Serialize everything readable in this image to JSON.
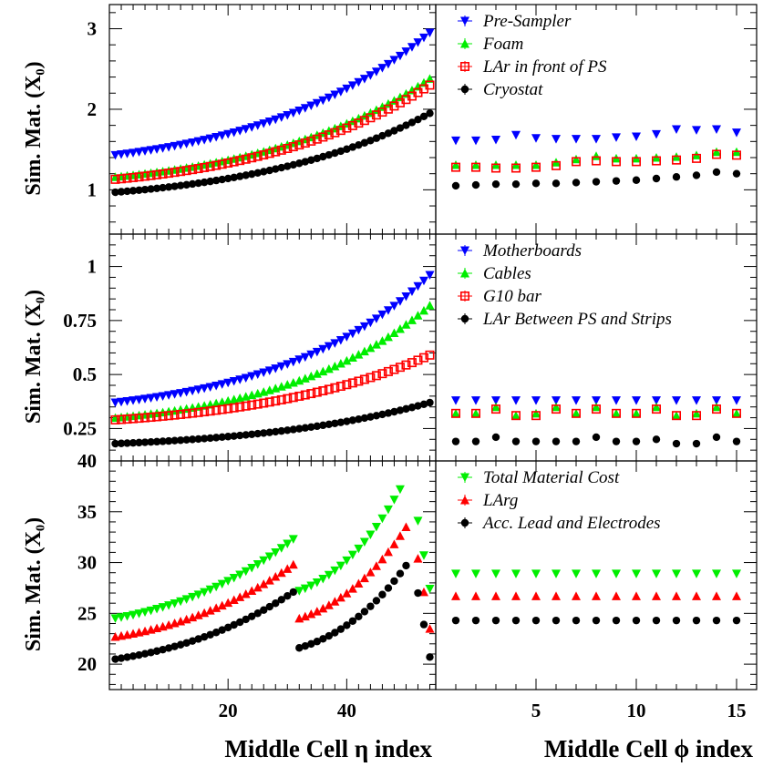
{
  "colors": {
    "blue": "#0000ff",
    "green": "#00ee00",
    "red": "#ff0000",
    "black": "#000000"
  },
  "chart_data": [
    {
      "id": "top",
      "type": "scatter",
      "ylabel": "Sim. Mat. (X₀)",
      "ylim": [
        0.45,
        3.3
      ],
      "y_ticks": [
        "1",
        "2",
        "3"
      ],
      "y_tick_values": [
        1,
        2,
        3
      ],
      "eta": {
        "x_ticks": [],
        "xlim": [
          0,
          55
        ],
        "series": [
          {
            "name": "Pre-Sampler",
            "marker": "tri_down",
            "color": "#0000ff",
            "from": 1,
            "to": 54,
            "start": 1.43,
            "end": 2.95
          },
          {
            "name": "Foam",
            "marker": "tri_up",
            "color": "#00ee00",
            "from": 1,
            "to": 54,
            "start": 1.16,
            "end": 2.38
          },
          {
            "name": "LAr in front of PS",
            "marker": "square",
            "color": "#ff0000",
            "from": 1,
            "to": 54,
            "start": 1.13,
            "end": 2.3
          },
          {
            "name": "Cryostat",
            "marker": "circle",
            "color": "#000000",
            "from": 1,
            "to": 54,
            "start": 0.97,
            "end": 1.95
          }
        ]
      },
      "phi": {
        "x_ticks": [],
        "xlim": [
          0,
          16
        ],
        "x": [
          1,
          2,
          3,
          4,
          5,
          6,
          7,
          8,
          9,
          10,
          11,
          12,
          13,
          14,
          15
        ],
        "series": [
          {
            "name": "Pre-Sampler",
            "marker": "tri_down",
            "color": "#0000ff",
            "values": [
              1.61,
              1.61,
              1.62,
              1.68,
              1.64,
              1.63,
              1.63,
              1.63,
              1.65,
              1.66,
              1.69,
              1.75,
              1.74,
              1.75,
              1.71
            ]
          },
          {
            "name": "Foam",
            "marker": "tri_up",
            "color": "#00ee00",
            "values": [
              1.31,
              1.31,
              1.31,
              1.31,
              1.31,
              1.34,
              1.38,
              1.42,
              1.39,
              1.39,
              1.4,
              1.41,
              1.43,
              1.47,
              1.47
            ]
          },
          {
            "name": "LAr in front of PS",
            "marker": "square",
            "color": "#ff0000",
            "values": [
              1.28,
              1.28,
              1.27,
              1.27,
              1.28,
              1.3,
              1.35,
              1.36,
              1.35,
              1.35,
              1.36,
              1.37,
              1.39,
              1.44,
              1.43
            ]
          },
          {
            "name": "Cryostat",
            "marker": "circle",
            "color": "#000000",
            "values": [
              1.05,
              1.06,
              1.07,
              1.07,
              1.08,
              1.08,
              1.09,
              1.1,
              1.11,
              1.12,
              1.14,
              1.16,
              1.18,
              1.22,
              1.2
            ]
          }
        ]
      },
      "legend": [
        "Pre-Sampler",
        "Foam",
        "LAr in front of PS",
        "Cryostat"
      ]
    },
    {
      "id": "middle",
      "type": "scatter",
      "ylabel": "Sim. Mat. (X₀)",
      "ylim": [
        0.1,
        1.15
      ],
      "y_ticks": [
        "0.25",
        "0.5",
        "0.75",
        "1"
      ],
      "y_tick_values": [
        0.25,
        0.5,
        0.75,
        1.0
      ],
      "eta": {
        "x_ticks": [],
        "xlim": [
          0,
          55
        ],
        "series": [
          {
            "name": "Motherboards",
            "marker": "tri_down",
            "color": "#0000ff",
            "from": 1,
            "to": 54,
            "start": 0.37,
            "end": 0.96
          },
          {
            "name": "Cables",
            "marker": "tri_up",
            "color": "#00ee00",
            "from": 1,
            "to": 54,
            "start": 0.3,
            "end": 0.82
          },
          {
            "name": "G10 bar",
            "marker": "square",
            "color": "#ff0000",
            "from": 1,
            "to": 54,
            "start": 0.29,
            "end": 0.59
          },
          {
            "name": "LAr Between PS and Strips",
            "marker": "circle",
            "color": "#000000",
            "from": 1,
            "to": 54,
            "start": 0.18,
            "end": 0.37
          }
        ]
      },
      "phi": {
        "x_ticks": [],
        "xlim": [
          0,
          16
        ],
        "x": [
          1,
          2,
          3,
          4,
          5,
          6,
          7,
          8,
          9,
          10,
          11,
          12,
          13,
          14,
          15
        ],
        "series": [
          {
            "name": "Motherboards",
            "marker": "tri_down",
            "color": "#0000ff",
            "values": [
              0.38,
              0.38,
              0.38,
              0.38,
              0.38,
              0.38,
              0.38,
              0.38,
              0.38,
              0.38,
              0.38,
              0.38,
              0.38,
              0.38,
              0.38
            ]
          },
          {
            "name": "Cables",
            "marker": "tri_up",
            "color": "#00ee00",
            "values": [
              0.32,
              0.32,
              0.35,
              0.31,
              0.32,
              0.35,
              0.32,
              0.35,
              0.32,
              0.32,
              0.35,
              0.31,
              0.32,
              0.35,
              0.32
            ]
          },
          {
            "name": "G10 bar",
            "marker": "square",
            "color": "#ff0000",
            "values": [
              0.32,
              0.32,
              0.34,
              0.31,
              0.31,
              0.34,
              0.32,
              0.34,
              0.32,
              0.32,
              0.34,
              0.31,
              0.31,
              0.34,
              0.32
            ]
          },
          {
            "name": "LAr Between PS and Strips",
            "marker": "circle",
            "color": "#000000",
            "values": [
              0.19,
              0.19,
              0.21,
              0.19,
              0.19,
              0.19,
              0.19,
              0.21,
              0.19,
              0.19,
              0.2,
              0.18,
              0.18,
              0.21,
              0.19
            ]
          }
        ]
      },
      "legend": [
        "Motherboards",
        "Cables",
        "G10 bar",
        "LAr Between PS and Strips"
      ]
    },
    {
      "id": "bottom",
      "type": "scatter",
      "ylabel": "Sim. Mat. (X₀)",
      "ylim": [
        17.5,
        40
      ],
      "y_ticks": [
        "20",
        "25",
        "30",
        "35",
        "40"
      ],
      "y_tick_values": [
        20,
        25,
        30,
        35,
        40
      ],
      "eta": {
        "xlabel": "Middle Cell η index",
        "x_ticks": [
          "20",
          "40"
        ],
        "x_tick_values": [
          20,
          40
        ],
        "xlim": [
          0,
          55
        ],
        "series": [
          {
            "name": "Total Material Cost",
            "marker": "tri_down",
            "color": "#00ee00",
            "segments": [
              {
                "from": 1,
                "to": 31,
                "start": 24.5,
                "end": 32.3
              },
              {
                "from": 32,
                "to": 49,
                "start": 27.2,
                "end": 37.2
              }
            ],
            "extra": [
              [
                52,
                34.1
              ],
              [
                53,
                30.7
              ],
              [
                54,
                27.4
              ]
            ]
          },
          {
            "name": "LArg",
            "marker": "tri_up",
            "color": "#ff0000",
            "segments": [
              {
                "from": 1,
                "to": 31,
                "start": 22.7,
                "end": 29.8
              },
              {
                "from": 32,
                "to": 50,
                "start": 24.5,
                "end": 33.5
              }
            ],
            "extra": [
              [
                52,
                30.4
              ],
              [
                53,
                27.1
              ],
              [
                54,
                23.5
              ]
            ]
          },
          {
            "name": "Acc. Lead and Electrodes",
            "marker": "circle",
            "color": "#000000",
            "segments": [
              {
                "from": 1,
                "to": 31,
                "start": 20.5,
                "end": 27.1
              },
              {
                "from": 32,
                "to": 50,
                "start": 21.6,
                "end": 29.7
              }
            ],
            "extra": [
              [
                52,
                27.0
              ],
              [
                53,
                23.9
              ],
              [
                54,
                20.7
              ]
            ]
          }
        ]
      },
      "phi": {
        "xlabel": "Middle Cell ϕ index",
        "x_ticks": [
          "5",
          "10",
          "15"
        ],
        "x_tick_values": [
          5,
          10,
          15
        ],
        "xlim": [
          0,
          16
        ],
        "x": [
          1,
          2,
          3,
          4,
          5,
          6,
          7,
          8,
          9,
          10,
          11,
          12,
          13,
          14,
          15
        ],
        "series": [
          {
            "name": "Total Material Cost",
            "marker": "tri_down",
            "color": "#00ee00",
            "values": [
              28.9,
              28.9,
              28.9,
              28.9,
              28.9,
              28.9,
              28.9,
              28.9,
              28.9,
              28.9,
              28.9,
              28.9,
              28.9,
              28.9,
              28.9
            ]
          },
          {
            "name": "LArg",
            "marker": "tri_up",
            "color": "#ff0000",
            "values": [
              26.7,
              26.7,
              26.7,
              26.7,
              26.7,
              26.7,
              26.7,
              26.7,
              26.7,
              26.7,
              26.7,
              26.7,
              26.7,
              26.7,
              26.7
            ]
          },
          {
            "name": "Acc. Lead and Electrodes",
            "marker": "circle",
            "color": "#000000",
            "values": [
              24.3,
              24.3,
              24.3,
              24.3,
              24.3,
              24.3,
              24.3,
              24.3,
              24.3,
              24.3,
              24.3,
              24.3,
              24.3,
              24.3,
              24.3
            ]
          }
        ]
      },
      "legend": [
        "Total Material Cost",
        "LArg",
        "Acc. Lead and Electrodes"
      ]
    }
  ]
}
